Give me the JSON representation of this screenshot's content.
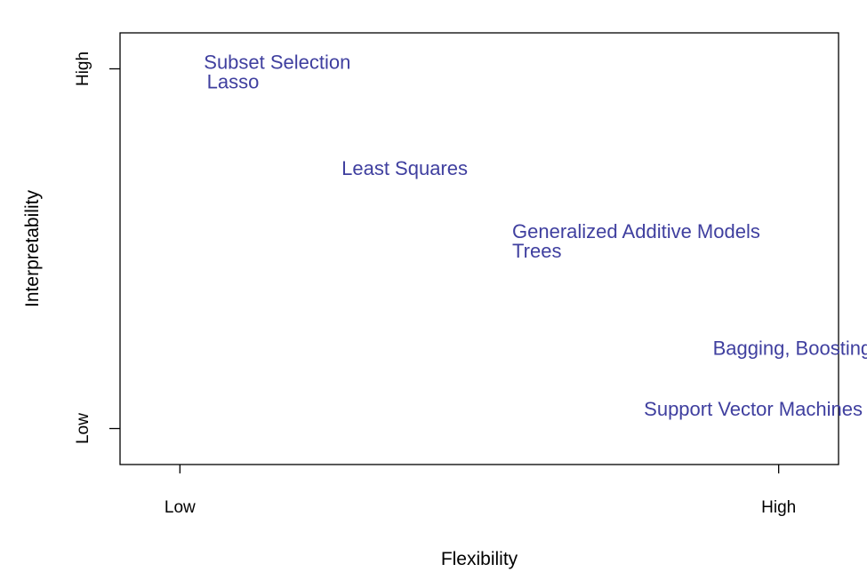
{
  "chart_data": {
    "type": "scatter",
    "title": "",
    "xlabel": "Flexibility",
    "ylabel": "Interpretability",
    "xlim": [
      -0.1,
      1.1
    ],
    "ylim": [
      -0.1,
      1.1
    ],
    "x_ticks": [
      {
        "value": 0,
        "label": "Low"
      },
      {
        "value": 1,
        "label": "High"
      }
    ],
    "y_ticks": [
      {
        "value": 0,
        "label": "Low"
      },
      {
        "value": 1,
        "label": "High"
      }
    ],
    "grid": false,
    "label_color": "#3F3F9F",
    "points": [
      {
        "label": "Subset Selection",
        "x": 0.04,
        "y": 1.02
      },
      {
        "label": "Lasso",
        "x": 0.045,
        "y": 0.965
      },
      {
        "label": "Least Squares",
        "x": 0.27,
        "y": 0.725
      },
      {
        "label": "Generalized Additive Models",
        "x": 0.555,
        "y": 0.55
      },
      {
        "label": "Trees",
        "x": 0.555,
        "y": 0.495
      },
      {
        "label": "Bagging, Boosting",
        "x": 0.89,
        "y": 0.225
      },
      {
        "label": "Support Vector Machines",
        "x": 0.775,
        "y": 0.055
      }
    ]
  }
}
